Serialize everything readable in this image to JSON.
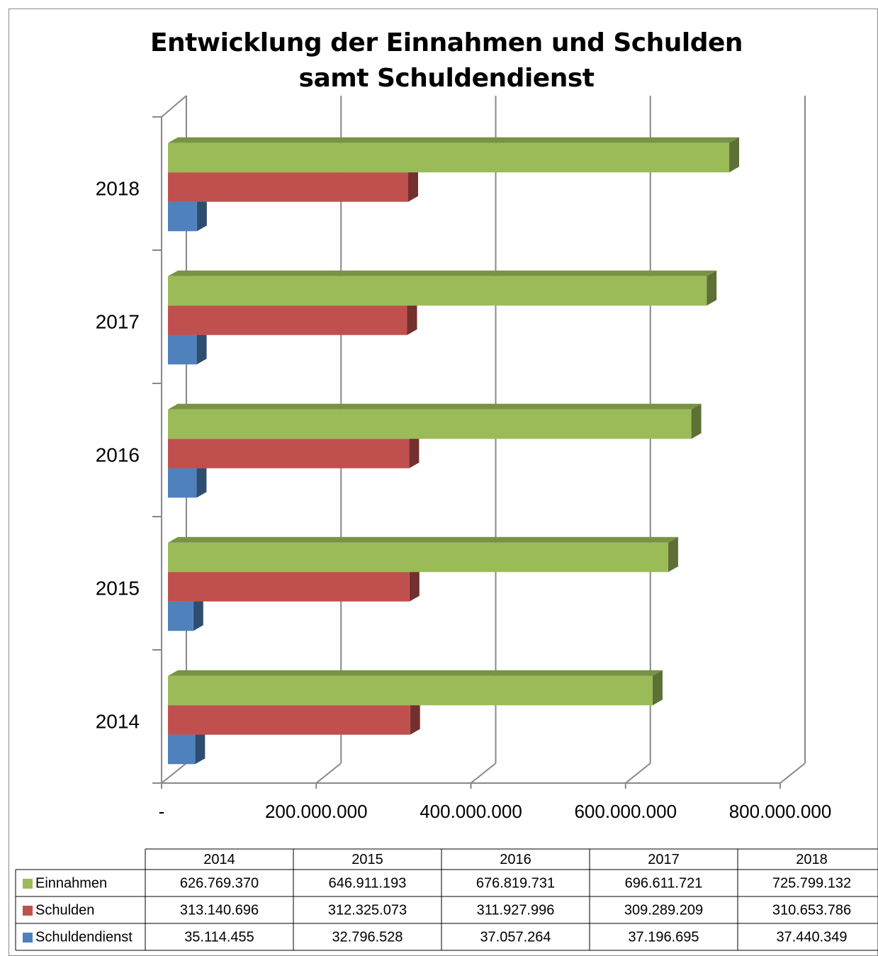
{
  "chart_data": {
    "type": "bar3d_horizontal",
    "title": "Entwicklung der Einnahmen und Schulden samt Schuldendienst",
    "categories": [
      "2014",
      "2015",
      "2016",
      "2017",
      "2018"
    ],
    "series": [
      {
        "name": "Einnahmen",
        "color": "#9bbb59",
        "values": [
          626769370,
          646911193,
          676819731,
          696611721,
          725799132
        ],
        "value_labels": [
          "626.769.370",
          "646.911.193",
          "676.819.731",
          "696.611.721",
          "725.799.132"
        ]
      },
      {
        "name": "Schulden",
        "color": "#c0504d",
        "values": [
          313140696,
          312325073,
          311927996,
          309289209,
          310653786
        ],
        "value_labels": [
          "313.140.696",
          "312.325.073",
          "311.927.996",
          "309.289.209",
          "310.653.786"
        ]
      },
      {
        "name": "Schuldendienst",
        "color": "#4f81bd",
        "values": [
          35114455,
          32796528,
          37057264,
          37196695,
          37440349
        ],
        "value_labels": [
          "35.114.455",
          "32.796.528",
          "37.057.264",
          "37.196.695",
          "37.440.349"
        ]
      }
    ],
    "xlim": [
      0,
      800000000
    ],
    "xticks": [
      {
        "value": 0,
        "label": "-"
      },
      {
        "value": 200000000,
        "label": "200.000.000"
      },
      {
        "value": 400000000,
        "label": "400.000.000"
      },
      {
        "value": 600000000,
        "label": "600.000.000"
      },
      {
        "value": 800000000,
        "label": "800.000.000"
      }
    ],
    "grid": true
  }
}
